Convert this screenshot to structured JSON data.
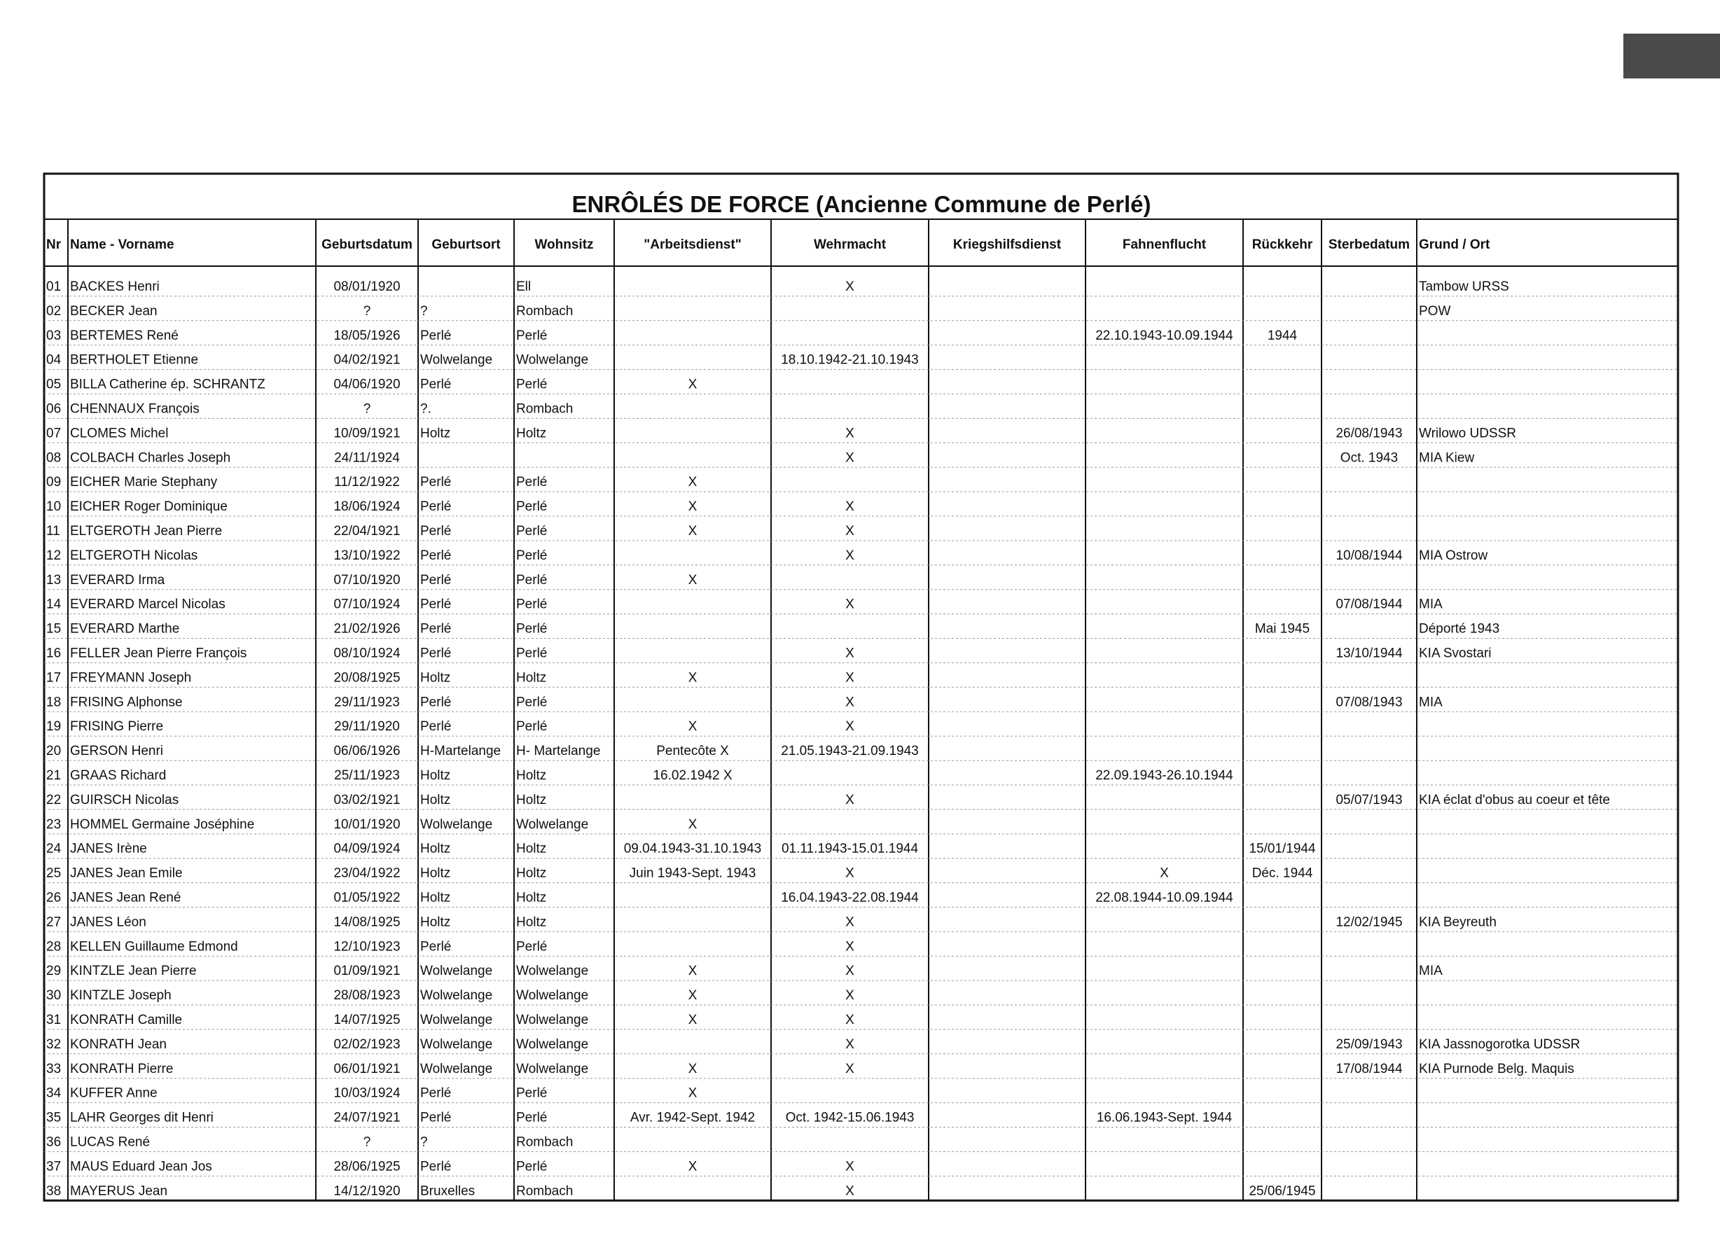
{
  "title": "ENRÔLÉS DE FORCE  (Ancienne Commune de Perlé)",
  "table": {
    "headers": [
      "Nr",
      "Name - Vorname",
      "Geburtsdatum",
      "Geburtsort",
      "Wohnsitz",
      "\"Arbeitsdienst\"",
      "Wehrmacht",
      "Kriegshilfsdienst",
      "Fahnenflucht",
      "Rückkehr",
      "Sterbedatum",
      "Grund / Ort"
    ],
    "rows": [
      [
        "01",
        "BACKES Henri",
        "08/01/1920",
        null,
        "Ell",
        null,
        "X",
        null,
        null,
        null,
        null,
        "Tambow URSS"
      ],
      [
        "02",
        "BECKER Jean",
        "?",
        "?",
        "Rombach",
        null,
        null,
        null,
        null,
        null,
        null,
        "POW"
      ],
      [
        "03",
        "BERTEMES René",
        "18/05/1926",
        "Perlé",
        "Perlé",
        null,
        null,
        null,
        "22.10.1943-10.09.1944",
        "1944",
        null,
        null
      ],
      [
        "04",
        "BERTHOLET Etienne",
        "04/02/1921",
        "Wolwelange",
        "Wolwelange",
        null,
        "18.10.1942-21.10.1943",
        null,
        null,
        null,
        null,
        null
      ],
      [
        "05",
        "BILLA Catherine ép. SCHRANTZ",
        "04/06/1920",
        "Perlé",
        "Perlé",
        "X",
        null,
        null,
        null,
        null,
        null,
        null
      ],
      [
        "06",
        "CHENNAUX François",
        "?",
        "?.",
        "Rombach",
        null,
        null,
        null,
        null,
        null,
        null,
        null
      ],
      [
        "07",
        "CLOMES Michel",
        "10/09/1921",
        "Holtz",
        "Holtz",
        null,
        "X",
        null,
        null,
        null,
        "26/08/1943",
        "Wrilowo UDSSR"
      ],
      [
        "08",
        "COLBACH Charles Joseph",
        "24/11/1924",
        null,
        null,
        null,
        "X",
        null,
        null,
        null,
        "Oct. 1943",
        "MIA Kiew"
      ],
      [
        "09",
        "EICHER Marie Stephany",
        "11/12/1922",
        "Perlé",
        "Perlé",
        "X",
        null,
        null,
        null,
        null,
        null,
        null
      ],
      [
        "10",
        "EICHER Roger Dominique",
        "18/06/1924",
        "Perlé",
        "Perlé",
        "X",
        "X",
        null,
        null,
        null,
        null,
        null
      ],
      [
        "11",
        "ELTGEROTH Jean Pierre",
        "22/04/1921",
        "Perlé",
        "Perlé",
        "X",
        "X",
        null,
        null,
        null,
        null,
        null
      ],
      [
        "12",
        "ELTGEROTH Nicolas",
        "13/10/1922",
        "Perlé",
        "Perlé",
        null,
        "X",
        null,
        null,
        null,
        "10/08/1944",
        "MIA Ostrow"
      ],
      [
        "13",
        "EVERARD Irma",
        "07/10/1920",
        "Perlé",
        "Perlé",
        "X",
        null,
        null,
        null,
        null,
        null,
        null
      ],
      [
        "14",
        "EVERARD Marcel Nicolas",
        "07/10/1924",
        "Perlé",
        "Perlé",
        null,
        "X",
        null,
        null,
        null,
        "07/08/1944",
        "MIA"
      ],
      [
        "15",
        "EVERARD Marthe",
        "21/02/1926",
        "Perlé",
        "Perlé",
        null,
        null,
        null,
        null,
        "Mai 1945",
        null,
        "Déporté 1943"
      ],
      [
        "16",
        "FELLER Jean Pierre François",
        "08/10/1924",
        "Perlé",
        "Perlé",
        null,
        "X",
        null,
        null,
        null,
        "13/10/1944",
        "KIA Svostari"
      ],
      [
        "17",
        "FREYMANN Joseph",
        "20/08/1925",
        "Holtz",
        "Holtz",
        "X",
        "X",
        null,
        null,
        null,
        null,
        null
      ],
      [
        "18",
        "FRISING Alphonse",
        "29/11/1923",
        "Perlé",
        "Perlé",
        null,
        "X",
        null,
        null,
        null,
        "07/08/1943",
        "MIA"
      ],
      [
        "19",
        "FRISING Pierre",
        "29/11/1920",
        "Perlé",
        "Perlé",
        "X",
        "X",
        null,
        null,
        null,
        null,
        null
      ],
      [
        "20",
        "GERSON Henri",
        "06/06/1926",
        "H-Martelange",
        "H- Martelange",
        "Pentecôte X",
        "21.05.1943-21.09.1943",
        null,
        null,
        null,
        null,
        null
      ],
      [
        "21",
        "GRAAS Richard",
        "25/11/1923",
        "Holtz",
        "Holtz",
        "16.02.1942 X",
        null,
        null,
        "22.09.1943-26.10.1944",
        null,
        null,
        null
      ],
      [
        "22",
        "GUIRSCH Nicolas",
        "03/02/1921",
        "Holtz",
        "Holtz",
        null,
        "X",
        null,
        null,
        null,
        "05/07/1943",
        "KIA éclat d'obus au coeur et tête"
      ],
      [
        "23",
        "HOMMEL Germaine Joséphine",
        "10/01/1920",
        "Wolwelange",
        "Wolwelange",
        "X",
        null,
        null,
        null,
        null,
        null,
        null
      ],
      [
        "24",
        "JANES Irène",
        "04/09/1924",
        "Holtz",
        "Holtz",
        "09.04.1943-31.10.1943",
        "01.11.1943-15.01.1944",
        null,
        null,
        "15/01/1944",
        null,
        null
      ],
      [
        "25",
        "JANES Jean Emile",
        "23/04/1922",
        "Holtz",
        "Holtz",
        "Juin 1943-Sept. 1943",
        "X",
        null,
        "X",
        "Déc. 1944",
        null,
        null
      ],
      [
        "26",
        "JANES Jean René",
        "01/05/1922",
        "Holtz",
        "Holtz",
        null,
        "16.04.1943-22.08.1944",
        null,
        "22.08.1944-10.09.1944",
        null,
        null,
        null
      ],
      [
        "27",
        "JANES Léon",
        "14/08/1925",
        "Holtz",
        "Holtz",
        null,
        "X",
        null,
        null,
        null,
        "12/02/1945",
        "KIA Beyreuth"
      ],
      [
        "28",
        "KELLEN Guillaume Edmond",
        "12/10/1923",
        "Perlé",
        "Perlé",
        null,
        "X",
        null,
        null,
        null,
        null,
        null
      ],
      [
        "29",
        "KINTZLE Jean Pierre",
        "01/09/1921",
        "Wolwelange",
        "Wolwelange",
        "X",
        "X",
        null,
        null,
        null,
        null,
        "MIA"
      ],
      [
        "30",
        "KINTZLE Joseph",
        "28/08/1923",
        "Wolwelange",
        "Wolwelange",
        "X",
        "X",
        null,
        null,
        null,
        null,
        null
      ],
      [
        "31",
        "KONRATH Camille",
        "14/07/1925",
        "Wolwelange",
        "Wolwelange",
        "X",
        "X",
        null,
        null,
        null,
        null,
        null
      ],
      [
        "32",
        "KONRATH Jean",
        "02/02/1923",
        "Wolwelange",
        "Wolwelange",
        null,
        "X",
        null,
        null,
        null,
        "25/09/1943",
        "KIA Jassnogorotka UDSSR"
      ],
      [
        "33",
        "KONRATH Pierre",
        "06/01/1921",
        "Wolwelange",
        "Wolwelange",
        "X",
        "X",
        null,
        null,
        null,
        "17/08/1944",
        "KIA Purnode Belg. Maquis"
      ],
      [
        "34",
        "KUFFER Anne",
        "10/03/1924",
        "Perlé",
        "Perlé",
        "X",
        null,
        null,
        null,
        null,
        null,
        null
      ],
      [
        "35",
        "LAHR Georges dit Henri",
        "24/07/1921",
        "Perlé",
        "Perlé",
        "Avr. 1942-Sept. 1942",
        "Oct. 1942-15.06.1943",
        null,
        "16.06.1943-Sept. 1944",
        null,
        null,
        null
      ],
      [
        "36",
        "LUCAS René",
        "?",
        "?",
        "Rombach",
        null,
        null,
        null,
        null,
        null,
        null,
        null
      ],
      [
        "37",
        "MAUS Eduard Jean Jos",
        "28/06/1925",
        "Perlé",
        "Perlé",
        "X",
        "X",
        null,
        null,
        null,
        null,
        null
      ],
      [
        "38",
        "MAYERUS Jean",
        "14/12/1920",
        "Bruxelles",
        "Rombach",
        null,
        "X",
        null,
        null,
        "25/06/1945",
        null,
        null
      ]
    ]
  }
}
